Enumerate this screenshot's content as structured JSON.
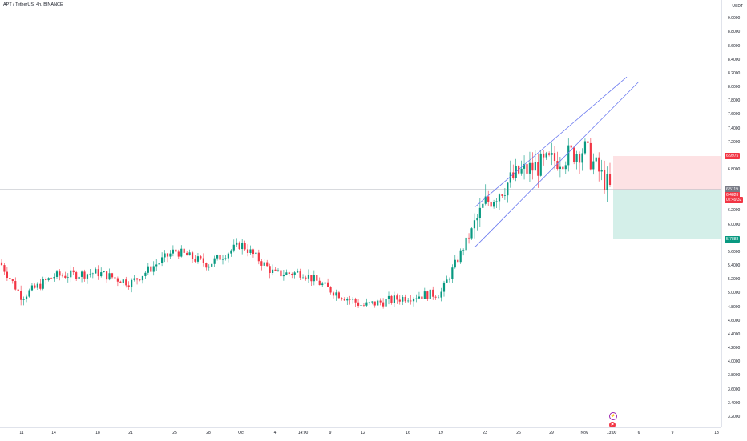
{
  "header": {
    "title": "APT / TetherUS, 4h, BINANCE",
    "currency": "USDT"
  },
  "price_axis": {
    "ticks": [
      "9.0000",
      "8.8000",
      "8.6000",
      "8.4000",
      "8.2000",
      "8.0000",
      "7.8000",
      "7.6000",
      "7.4000",
      "7.2000",
      "6.8000",
      "6.2000",
      "6.0000",
      "5.6000",
      "5.4000",
      "5.2000",
      "5.0000",
      "4.8000",
      "4.6000",
      "4.4000",
      "4.2000",
      "4.0000",
      "3.8000",
      "3.6000",
      "3.4000",
      "3.2000"
    ],
    "stop_label": "6.9975",
    "entry_label": "6.5119",
    "last_price_label": "6.4826",
    "countdown_label": "02:49:32",
    "target_label": "5.7888"
  },
  "time_axis": {
    "ticks": [
      "11",
      "14",
      "18",
      "21",
      "25",
      "28",
      "Oct",
      "4",
      "14:00",
      "9",
      "12",
      "16",
      "19",
      "23",
      "26",
      "29",
      "Nov",
      "13:00",
      "6",
      "9",
      "13"
    ]
  },
  "colors": {
    "up": "#089981",
    "down": "#f23645",
    "channel": "#6c7bf0",
    "stop_zone": "#fde2e4",
    "target_zone": "#d4efe9",
    "price_line": "#787b86"
  },
  "icons": [
    "lightning-icon",
    "flag-icon"
  ],
  "chart_data": {
    "type": "candlestick",
    "title": "APT / TetherUS, 4h, BINANCE",
    "y_unit": "USDT",
    "ylim": [
      3.0,
      9.2
    ],
    "x_labels": [
      "11",
      "14",
      "18",
      "21",
      "25",
      "28",
      "Oct",
      "4",
      "14:00",
      "9",
      "12",
      "16",
      "19",
      "23",
      "26",
      "29",
      "Nov",
      "13:00",
      "6",
      "9",
      "13"
    ],
    "grid": false,
    "close_anchors": [
      {
        "label": "11",
        "close": 4.95
      },
      {
        "label": "14",
        "close": 5.25
      },
      {
        "label": "18",
        "close": 5.3
      },
      {
        "label": "21",
        "close": 5.15
      },
      {
        "label": "25",
        "close": 5.62
      },
      {
        "label": "28",
        "close": 5.42
      },
      {
        "label": "Oct",
        "close": 5.72
      },
      {
        "label": "4",
        "close": 5.28
      },
      {
        "label": "14:00",
        "close": 5.3
      },
      {
        "label": "9",
        "close": 5.05
      },
      {
        "label": "12",
        "close": 4.82
      },
      {
        "label": "16",
        "close": 4.95
      },
      {
        "label": "19",
        "close": 5.0
      },
      {
        "label": "23",
        "close": 6.3
      },
      {
        "label": "26",
        "close": 6.75
      },
      {
        "label": "29",
        "close": 6.92
      },
      {
        "label": "Nov",
        "close": 7.1
      },
      {
        "label": "13:00",
        "close": 6.48
      }
    ],
    "channel": {
      "upper": [
        {
          "label": "23",
          "price": 6.38
        },
        {
          "label": "Nov",
          "price": 7.62
        }
      ],
      "lower": [
        {
          "label": "23",
          "price": 5.82
        },
        {
          "label": "Nov",
          "price": 7.28
        }
      ]
    },
    "position": {
      "entry": 6.5119,
      "stop": 6.9975,
      "target": 5.7888,
      "side": "short"
    },
    "last_price": 6.4826
  }
}
